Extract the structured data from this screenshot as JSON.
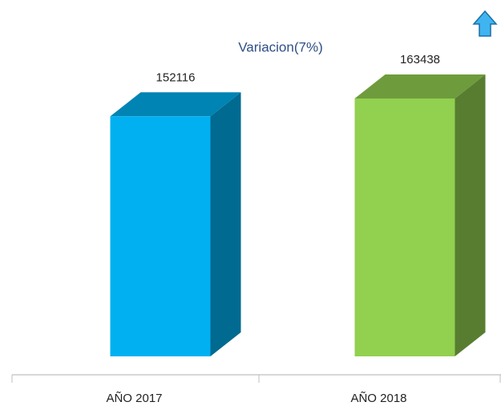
{
  "chart_data": {
    "type": "bar3d",
    "title": "Variacion(7%)",
    "categories": [
      "AÑO 2017",
      "AÑO 2018"
    ],
    "values": [
      152116,
      163438
    ],
    "colors": [
      "#00b0f0",
      "#92d050"
    ]
  }
}
